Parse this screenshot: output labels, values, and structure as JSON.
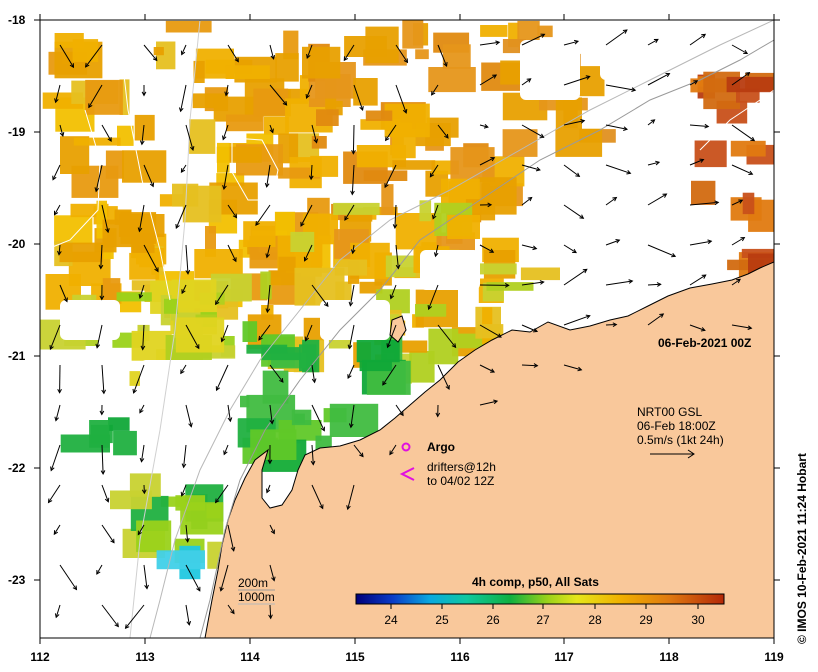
{
  "map": {
    "date_label": "06-Feb-2021 00Z",
    "credit": "© IMOS 10-Feb-2021 11:24 Hobart",
    "lat_ticks": [
      "-18",
      "-19",
      "-20",
      "-21",
      "-22",
      "-23"
    ],
    "lon_ticks": [
      "112",
      "113",
      "114",
      "115",
      "116",
      "117",
      "118",
      "119"
    ],
    "current_legend": {
      "title": "NRT00 GSL",
      "time": "06-Feb 18:00Z",
      "scale": "0.5m/s (1kt 24h)"
    },
    "argo_label": "Argo",
    "drifter_label_1": "drifters@12h",
    "drifter_label_2": "to 04/02 12Z",
    "depth_label_1": "200m",
    "depth_label_2": "1000m",
    "colorbar": {
      "title": "4h comp, p50, All Sats",
      "ticks": [
        "24",
        "25",
        "26",
        "27",
        "28",
        "29",
        "30"
      ]
    },
    "colors": {
      "land": "#F9C89B",
      "current_arrow": "#000000",
      "argo_marker": "#E010E0",
      "drifter_marker": "#E010E0"
    }
  }
}
